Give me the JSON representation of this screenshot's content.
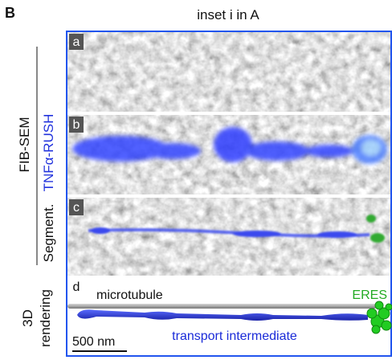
{
  "panel_label": "B",
  "title": "inset i in A",
  "row_labels": {
    "fib_sem": "FIB-SEM",
    "tnf_rush": "TNFα-RUSH",
    "segment": "Segment.",
    "rendering": [
      "3D",
      "rendering"
    ]
  },
  "panels": [
    {
      "label": "a"
    },
    {
      "label": "b"
    },
    {
      "label": "c"
    },
    {
      "label": "d"
    }
  ],
  "annotations": {
    "microtubule": "microtubule",
    "eres": "ERES",
    "transport_intermediate": "transport intermediate",
    "scale_bar": "500 nm"
  }
}
